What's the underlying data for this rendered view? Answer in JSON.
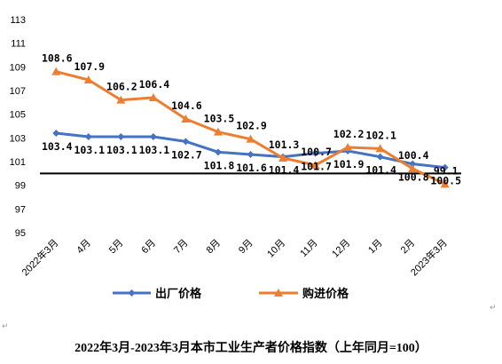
{
  "caption": "2022年3月-2023年3月本市工业生产者价格指数（上年同月=100）",
  "paragraph_mark": "↵",
  "colors": {
    "series1": "#4472c4",
    "series2": "#ed7d31",
    "axis": "#000000"
  },
  "chart_data": {
    "type": "line",
    "categories": [
      "2022年3月",
      "4月",
      "5月",
      "6月",
      "7月",
      "8月",
      "9月",
      "10月",
      "11月",
      "12月",
      "1月",
      "2月",
      "2023年3月"
    ],
    "ylim": [
      95,
      113
    ],
    "yticks": [
      95,
      97,
      99,
      101,
      103,
      105,
      107,
      109,
      111,
      113
    ],
    "baseline": 100,
    "legend_position": "bottom",
    "series": [
      {
        "name": "出厂价格",
        "values": [
          103.4,
          103.1,
          103.1,
          103.1,
          102.7,
          101.8,
          101.6,
          101.4,
          101.7,
          101.9,
          101.4,
          100.8,
          100.5
        ],
        "labels": [
          "103.4",
          "103.1",
          "103.1",
          "103.1",
          "102.7",
          "101.8",
          "101.6",
          "101.4",
          "101.7",
          "101.9",
          "101.4",
          "100.8",
          "100.5"
        ],
        "marker": "diamond"
      },
      {
        "name": "购进价格",
        "values": [
          108.6,
          107.9,
          106.2,
          106.4,
          104.6,
          103.5,
          102.9,
          101.3,
          100.7,
          102.2,
          102.1,
          100.4,
          99.1
        ],
        "labels": [
          "108.6",
          "107.9",
          "106.2",
          "106.4",
          "104.6",
          "103.5",
          "102.9",
          "101.3",
          "100.7",
          "102.2",
          "102.1",
          "100.4",
          "99.1"
        ],
        "marker": "triangle"
      }
    ]
  }
}
